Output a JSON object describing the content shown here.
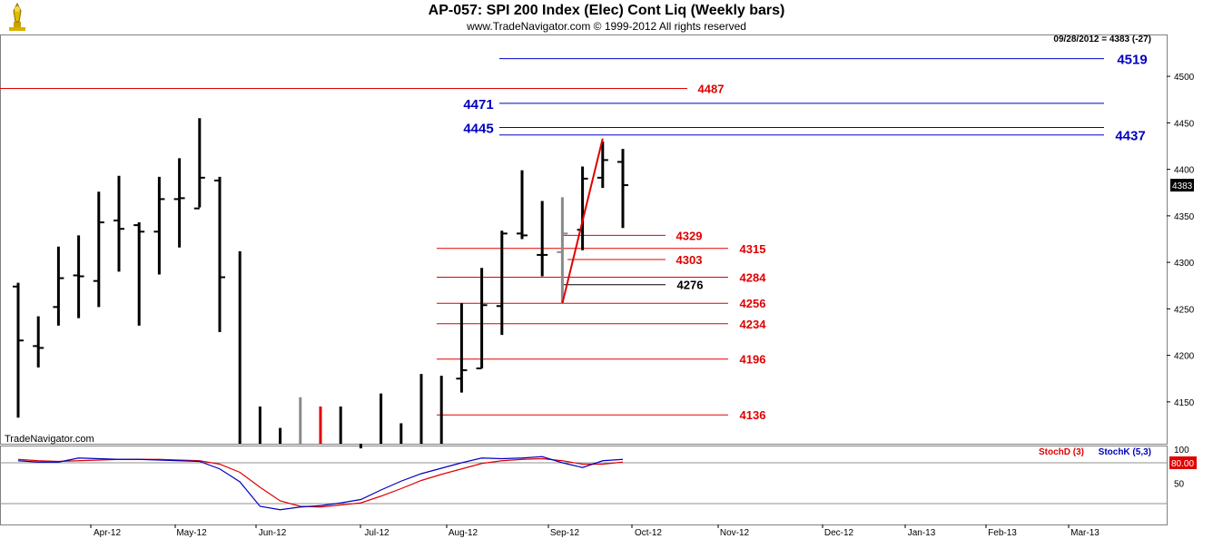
{
  "header": {
    "title": "AP-057:  SPI 200 Index (Elec) Cont Liq  (Weekly bars)",
    "subtitle": "www.TradeNavigator.com © 1999-2012 All rights reserved",
    "last_info": "09/28/2012 = 4383 (-27)",
    "watermark": "TradeNavigator.com",
    "logo_icon": "trade-navigator-logo-icon"
  },
  "colors": {
    "red": "#e00000",
    "blue": "#0000c0",
    "black": "#000000",
    "gray": "#8a8a8a"
  },
  "chart_data": {
    "type": "ohlc",
    "price_axis": {
      "ylim": [
        4105,
        4545
      ],
      "ticks": [
        4150,
        4200,
        4250,
        4300,
        4350,
        4400,
        4450,
        4500
      ],
      "current_marker": "4383"
    },
    "x_axis": {
      "months": [
        "Apr-12",
        "May-12",
        "Jun-12",
        "Jul-12",
        "Aug-12",
        "Sep-12",
        "Oct-12",
        "Nov-12",
        "Dec-12",
        "Jan-13",
        "Feb-13",
        "Mar-13"
      ]
    },
    "bars": [
      {
        "week": 1,
        "high": 4278,
        "low": 4133,
        "open": 4274,
        "close": 4216,
        "color": "black"
      },
      {
        "week": 2,
        "high": 4242,
        "low": 4187,
        "open": 4210,
        "close": 4208,
        "color": "black"
      },
      {
        "week": 3,
        "high": 4317,
        "low": 4232,
        "open": 4252,
        "close": 4283,
        "color": "black"
      },
      {
        "week": 4,
        "high": 4329,
        "low": 4240,
        "open": 4286,
        "close": 4285,
        "color": "black"
      },
      {
        "week": 5,
        "high": 4376,
        "low": 4252,
        "open": 4280,
        "close": 4343,
        "color": "black"
      },
      {
        "week": 6,
        "high": 4393,
        "low": 4290,
        "open": 4345,
        "close": 4336,
        "color": "black"
      },
      {
        "week": 7,
        "high": 4343,
        "low": 4232,
        "open": 4340,
        "close": 4333,
        "color": "black"
      },
      {
        "week": 8,
        "high": 4392,
        "low": 4287,
        "open": 4333,
        "close": 4368,
        "color": "black"
      },
      {
        "week": 9,
        "high": 4412,
        "low": 4316,
        "open": 4368,
        "close": 4369,
        "color": "black"
      },
      {
        "week": 10,
        "high": 4455,
        "low": 4359,
        "open": 4358,
        "close": 4391,
        "color": "black"
      },
      {
        "week": 11,
        "high": 4392,
        "low": 4225,
        "open": 4388,
        "close": 4284,
        "color": "black"
      },
      {
        "week": 12,
        "high": 4312,
        "low": 4100,
        "open": 4284,
        "close": 4284,
        "color": "black"
      },
      {
        "week": 13,
        "high": 4145,
        "low": 4100,
        "open": 4110,
        "close": 4110,
        "color": "black"
      },
      {
        "week": 14,
        "high": 4122,
        "low": 4100,
        "open": 4110,
        "close": 4110,
        "color": "black"
      },
      {
        "week": 15,
        "high": 4155,
        "low": 4100,
        "open": 4110,
        "close": 4110,
        "color": "gray"
      },
      {
        "week": 16,
        "high": 4145,
        "low": 4100,
        "open": 4110,
        "close": 4110,
        "color": "red"
      },
      {
        "week": 17,
        "high": 4145,
        "low": 4100,
        "open": 4110,
        "close": 4110,
        "color": "black"
      },
      {
        "week": 18,
        "high": 4100,
        "low": 4100,
        "open": 4100,
        "close": 4100,
        "color": "black"
      },
      {
        "week": 19,
        "high": 4159,
        "low": 4100,
        "open": 4122,
        "close": 4122,
        "color": "black"
      },
      {
        "week": 20,
        "high": 4127,
        "low": 4100,
        "open": 4117,
        "close": 4120,
        "color": "black"
      },
      {
        "week": 21,
        "high": 4180,
        "low": 4100,
        "open": 4160,
        "close": 4165,
        "color": "black"
      },
      {
        "week": 22,
        "high": 4178,
        "low": 4100,
        "open": 4167,
        "close": 4175,
        "color": "black"
      },
      {
        "week": 23,
        "high": 4256,
        "low": 4160,
        "open": 4175,
        "close": 4184,
        "color": "black"
      },
      {
        "week": 24,
        "high": 4294,
        "low": 4186,
        "open": 4186,
        "close": 4254,
        "color": "black"
      },
      {
        "week": 25,
        "high": 4334,
        "low": 4222,
        "open": 4253,
        "close": 4331,
        "color": "black"
      },
      {
        "week": 26,
        "high": 4399,
        "low": 4325,
        "open": 4331,
        "close": 4329,
        "color": "black"
      },
      {
        "week": 27,
        "high": 4366,
        "low": 4285,
        "open": 4308,
        "close": 4308,
        "color": "black"
      },
      {
        "week": 28,
        "high": 4370,
        "low": 4256,
        "open": 4311,
        "close": 4331,
        "color": "gray"
      },
      {
        "week": 29,
        "high": 4403,
        "low": 4313,
        "open": 4335,
        "close": 4390,
        "color": "black"
      },
      {
        "week": 30,
        "high": 4430,
        "low": 4380,
        "open": 4391,
        "close": 4410,
        "color": "black"
      },
      {
        "week": 31,
        "high": 4422,
        "low": 4337,
        "open": 4408,
        "close": 4383,
        "color": "black"
      }
    ],
    "trend_line": {
      "points": [
        [
          28,
          4256
        ],
        [
          30,
          4433
        ]
      ],
      "color": "red"
    },
    "levels": [
      {
        "value": 4519,
        "label": "4519",
        "color": "blue",
        "label_side": "right"
      },
      {
        "value": 4487,
        "label": "4487",
        "color": "red",
        "label_side": "right"
      },
      {
        "value": 4471,
        "label": "4471",
        "color": "blue",
        "label_side": "left"
      },
      {
        "value": 4445,
        "label": "4445",
        "color": "blue",
        "label_side": "left"
      },
      {
        "value": 4437,
        "label": "4437",
        "color": "blue",
        "label_side": "right"
      },
      {
        "value": 4329,
        "label": "4329",
        "color": "red",
        "label_side": "right"
      },
      {
        "value": 4315,
        "label": "4315",
        "color": "red",
        "label_side": "right"
      },
      {
        "value": 4303,
        "label": "4303",
        "color": "red",
        "label_side": "right"
      },
      {
        "value": 4284,
        "label": "4284",
        "color": "red",
        "label_side": "right"
      },
      {
        "value": 4276,
        "label": "4276",
        "color": "black",
        "label_side": "right"
      },
      {
        "value": 4256,
        "label": "4256",
        "color": "red",
        "label_side": "right"
      },
      {
        "value": 4234,
        "label": "4234",
        "color": "red",
        "label_side": "right"
      },
      {
        "value": 4196,
        "label": "4196",
        "color": "red",
        "label_side": "right"
      },
      {
        "value": 4136,
        "label": "4136",
        "color": "red",
        "label_side": "right"
      }
    ],
    "stochastic": {
      "ylim": [
        0,
        100
      ],
      "ticks": [
        50,
        100
      ],
      "level": "80.00",
      "legend": [
        {
          "name": "StochD (3)",
          "color": "red"
        },
        {
          "name": "StochK (5,3)",
          "color": "blue"
        }
      ],
      "k_values": [
        83,
        81,
        81,
        87,
        86,
        85,
        85,
        84,
        83,
        82,
        71,
        52,
        16,
        11,
        15,
        17,
        21,
        26,
        40,
        53,
        64,
        72,
        80,
        87,
        86,
        87,
        89,
        80,
        73,
        83,
        85
      ],
      "d_values": [
        85,
        83,
        82,
        83,
        84,
        85,
        85,
        85,
        84,
        83,
        78,
        66,
        44,
        24,
        16,
        15,
        18,
        21,
        31,
        42,
        54,
        63,
        71,
        79,
        83,
        85,
        86,
        83,
        78,
        78,
        81
      ]
    }
  }
}
